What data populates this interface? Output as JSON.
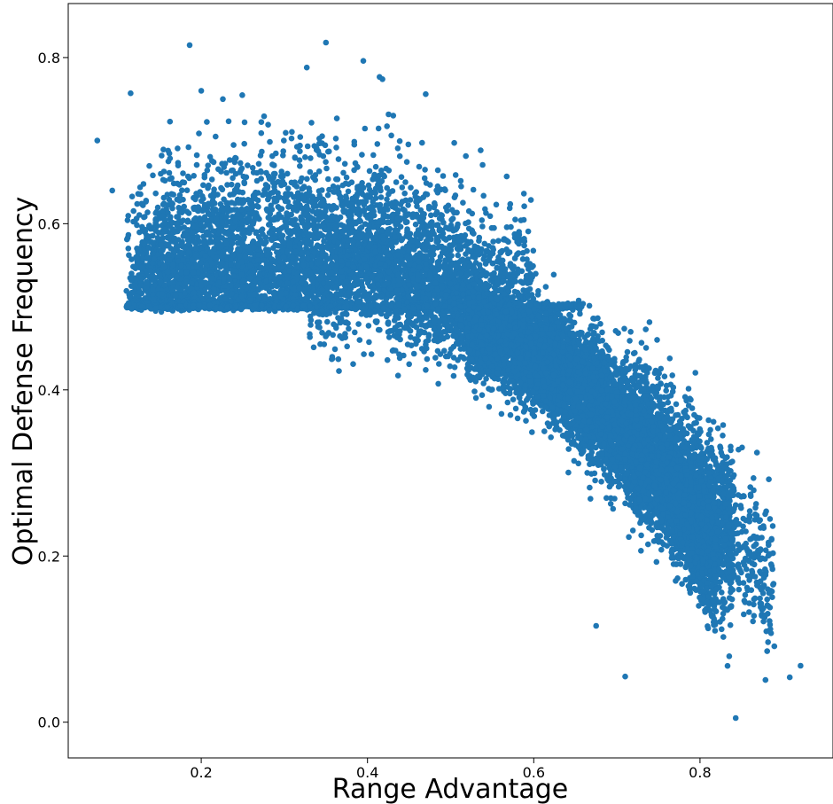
{
  "chart_data": {
    "type": "scatter",
    "title": "",
    "xlabel": "Range Advantage",
    "ylabel": "Optimal Defense Frequency",
    "xlim": [
      0.04,
      0.96
    ],
    "ylim": [
      -0.043,
      0.865
    ],
    "xticks": [
      0.2,
      0.4,
      0.6,
      0.8
    ],
    "xtick_labels": [
      "0.2",
      "0.4",
      "0.6",
      "0.8"
    ],
    "yticks": [
      0.0,
      0.2,
      0.4,
      0.6,
      0.8
    ],
    "ytick_labels": [
      "0.0",
      "0.2",
      "0.4",
      "0.6",
      "0.8"
    ],
    "grid": false,
    "legend": "none",
    "marker_color": "#1f77b4",
    "point_count_note": "dense cloud of thousands of points",
    "notable_points": [
      {
        "x": 0.075,
        "y": 0.7
      },
      {
        "x": 0.093,
        "y": 0.64
      },
      {
        "x": 0.115,
        "y": 0.757
      },
      {
        "x": 0.186,
        "y": 0.815
      },
      {
        "x": 0.35,
        "y": 0.818
      },
      {
        "x": 0.327,
        "y": 0.788
      },
      {
        "x": 0.395,
        "y": 0.796
      },
      {
        "x": 0.418,
        "y": 0.774
      },
      {
        "x": 0.47,
        "y": 0.756
      },
      {
        "x": 0.2,
        "y": 0.76
      },
      {
        "x": 0.921,
        "y": 0.068
      },
      {
        "x": 0.843,
        "y": 0.005
      },
      {
        "x": 0.908,
        "y": 0.054
      },
      {
        "x": 0.675,
        "y": 0.116
      },
      {
        "x": 0.71,
        "y": 0.055
      }
    ]
  }
}
